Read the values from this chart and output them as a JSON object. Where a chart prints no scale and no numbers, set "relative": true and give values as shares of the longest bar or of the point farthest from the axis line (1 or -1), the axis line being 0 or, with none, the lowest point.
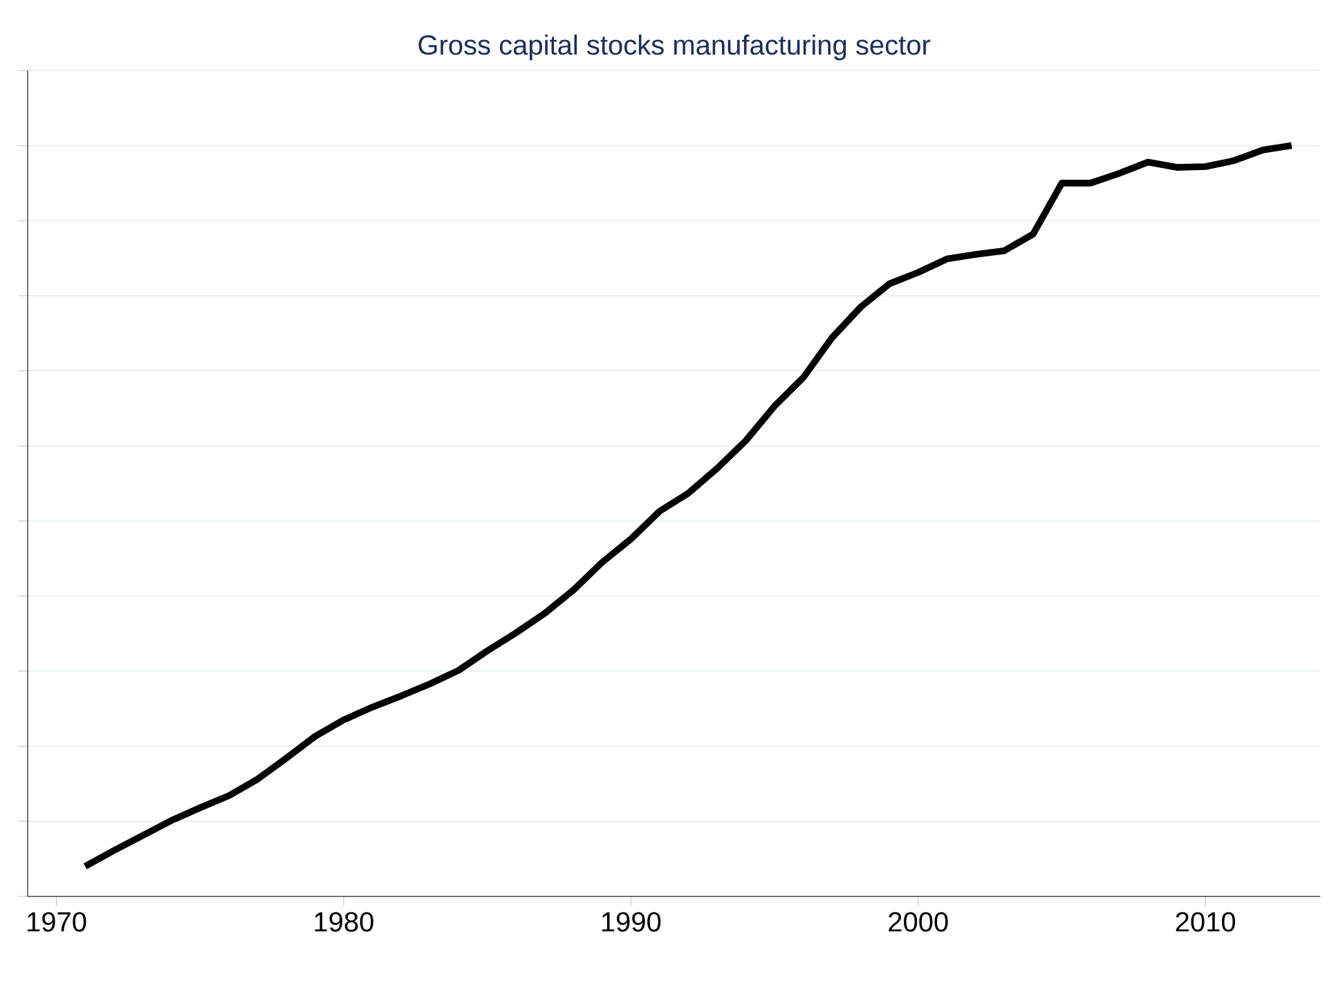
{
  "chart_data": {
    "type": "line",
    "title": "Gross capital stocks manufacturing sector",
    "relative": true,
    "grid": "y",
    "x": [
      1971,
      1972,
      1973,
      1974,
      1975,
      1976,
      1977,
      1978,
      1979,
      1980,
      1981,
      1982,
      1983,
      1984,
      1985,
      1986,
      1987,
      1988,
      1989,
      1990,
      1991,
      1992,
      1993,
      1994,
      1995,
      1996,
      1997,
      1998,
      1999,
      2000,
      2001,
      2002,
      2003,
      2004,
      2005,
      2006,
      2007,
      2008,
      2009,
      2010,
      2011,
      2012,
      2013
    ],
    "series": [
      {
        "color": "#000000",
        "values": [
          0.04,
          0.061,
          0.081,
          0.101,
          0.118,
          0.134,
          0.156,
          0.184,
          0.213,
          0.235,
          0.252,
          0.267,
          0.283,
          0.301,
          0.327,
          0.351,
          0.377,
          0.408,
          0.445,
          0.476,
          0.513,
          0.537,
          0.57,
          0.607,
          0.653,
          0.691,
          0.744,
          0.785,
          0.816,
          0.831,
          0.849,
          0.855,
          0.86,
          0.882,
          0.95,
          0.95,
          0.963,
          0.978,
          0.971,
          0.972,
          0.98,
          0.994,
          1.0
        ]
      }
    ],
    "xlim": [
      1969,
      2014
    ],
    "xticks": [
      1970,
      1980,
      1990,
      2000,
      2010
    ]
  }
}
